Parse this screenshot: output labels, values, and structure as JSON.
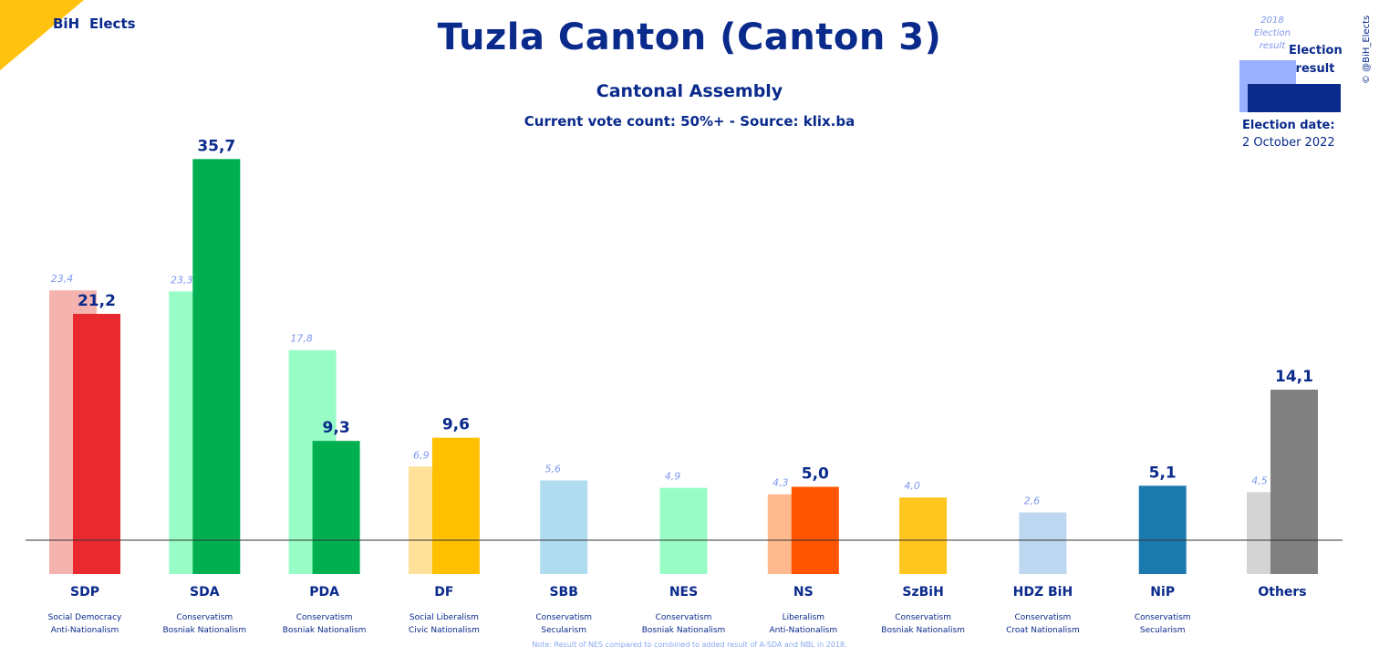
{
  "header": {
    "logo_bih": "BiH",
    "logo_elects": "Elects",
    "title": "Tuzla Canton (Canton 3)",
    "subtitle": "Cantonal Assembly",
    "source": "Current vote count: 50%+ - Source: klix.ba",
    "credit": "© @BiH_Elects"
  },
  "legend": {
    "previous_label": "2018 Election result",
    "current_label": "Election result",
    "date_label": "Election date:",
    "date_value": "2 October 2022",
    "previous_color": "#9bb1ff",
    "current_color": "#0a2a8c"
  },
  "note": "Note: Result of NES compared to combined to added result of A-SDA and NBL in 2018.",
  "chart_data": {
    "type": "bar",
    "title": "Tuzla Canton (Canton 3)",
    "subtitle": "Cantonal Assembly",
    "categories": [
      "SDP",
      "SDA",
      "PDA",
      "DF",
      "SBB",
      "NES",
      "NS",
      "SzBiH",
      "HDZ BiH",
      "NiP",
      "Others"
    ],
    "ideologies": [
      [
        "Social Democracy",
        "Anti-Nationalism"
      ],
      [
        "Conservatism",
        "Bosniak Nationalism"
      ],
      [
        "Conservatism",
        "Bosniak Nationalism"
      ],
      [
        "Social Liberalism",
        "Civic Nationalism"
      ],
      [
        "Conservatism",
        "Secularism"
      ],
      [
        "Conservatism",
        "Bosniak Nationalism"
      ],
      [
        "Liberalism",
        "Anti-Nationalism"
      ],
      [
        "Conservatism",
        "Bosniak Nationalism"
      ],
      [
        "Conservatism",
        "Croat Nationalism"
      ],
      [
        "Conservatism",
        "Secularism"
      ],
      [
        "",
        ""
      ]
    ],
    "series": [
      {
        "name": "2018 Election result",
        "values": [
          23.4,
          23.3,
          17.8,
          6.9,
          5.6,
          4.9,
          4.3,
          4.0,
          2.6,
          null,
          4.5
        ],
        "labels": [
          "23,4",
          "23,3",
          "17,8",
          "6,9",
          "5,6",
          "4,9",
          "4,3",
          "4,0",
          "2,6",
          "",
          "4,5"
        ],
        "colors": [
          "#f5b3b0",
          "#98fcc6",
          "#98fcc6",
          "#ffe19a",
          "#b0dcf0",
          "#98fcc6",
          "#ffb98f",
          "#ffc61f",
          "#bcd7ef",
          "#1b79ad",
          "#d4d4d4"
        ]
      },
      {
        "name": "Election result",
        "values": [
          21.2,
          35.7,
          9.3,
          9.6,
          null,
          null,
          5.0,
          null,
          null,
          5.1,
          14.1
        ],
        "labels": [
          "21,2",
          "35,7",
          "9,3",
          "9,6",
          "",
          "",
          "5,0",
          "",
          "",
          "5,1",
          "14,1"
        ],
        "colors": [
          "#e8292d",
          "#00b050",
          "#00b050",
          "#ffc000",
          "#b0dcf0",
          "#98fcc6",
          "#ff5500",
          "#ffc61f",
          "#bcd7ef",
          "#1b79ad",
          "#808080"
        ]
      }
    ],
    "ylim": [
      -3,
      37
    ],
    "grid": false,
    "legend_position": "top-right"
  }
}
